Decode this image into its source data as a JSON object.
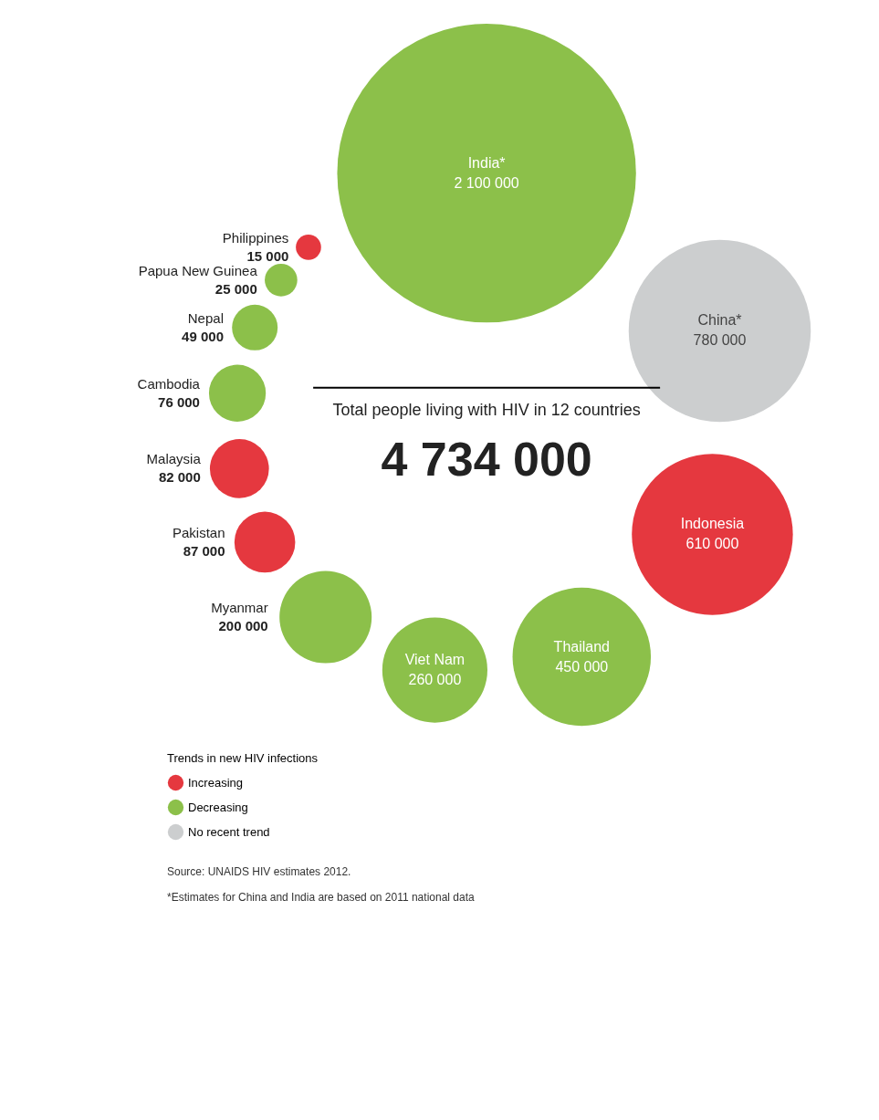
{
  "chart_data": {
    "type": "other",
    "title": "Total people living with HIV in 12 countries",
    "subtitle": "4 734 000",
    "legend_title": "Trends in new HIV infections",
    "legend": "bottom left",
    "categories": [
      "India*",
      "China*",
      "Indonesia",
      "Thailand",
      "Viet Nam",
      "Myanmar",
      "Pakistan",
      "Malaysia",
      "Cambodia",
      "Nepal",
      "Papua New Guinea",
      "Philippines"
    ],
    "series": [
      {
        "name": "Increasing",
        "color": "#e5383f",
        "values": [
          null,
          null,
          610000,
          null,
          null,
          null,
          87000,
          82000,
          null,
          null,
          null,
          15000
        ],
        "value_labels": [
          null,
          null,
          "610 000",
          null,
          null,
          null,
          "87 000",
          "82 000",
          null,
          null,
          null,
          "15 000"
        ]
      },
      {
        "name": "Decreasing",
        "color": "#8cc04a",
        "values": [
          2100000,
          null,
          null,
          450000,
          260000,
          200000,
          null,
          null,
          76000,
          49000,
          25000,
          null
        ],
        "value_labels": [
          "2 100 000",
          null,
          null,
          "450 000",
          "260 000",
          "200 000",
          null,
          null,
          "76 000",
          "49 000",
          "25 000",
          null
        ]
      },
      {
        "name": "No recent trend",
        "color": "#cccecf",
        "values": [
          null,
          780000,
          null,
          null,
          null,
          null,
          null,
          null,
          null,
          null,
          null,
          null
        ],
        "value_labels": [
          null,
          "780 000",
          null,
          null,
          null,
          null,
          null,
          null,
          null,
          null,
          null,
          null
        ]
      }
    ],
    "annotations": [
      "Source: UNAIDS HIV estimates 2012.",
      "*Estimates for China and India are based on 2011 national data"
    ]
  }
}
